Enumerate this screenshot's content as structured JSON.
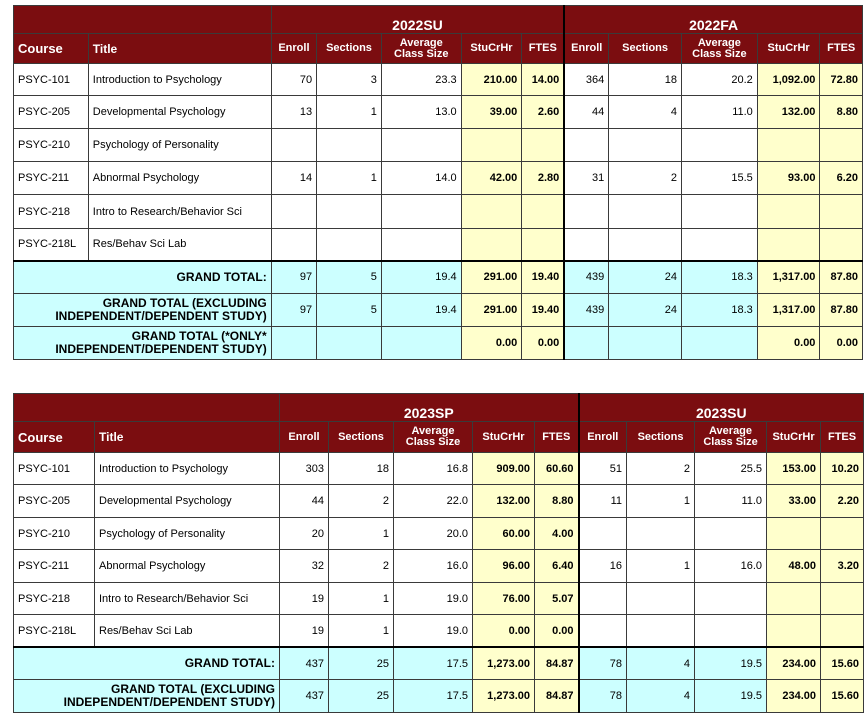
{
  "table1": {
    "term_a": "2022SU",
    "term_b": "2022FA",
    "headers": {
      "course": "Course",
      "title": "Title",
      "enroll": "Enroll",
      "sections": "Sections",
      "avg": "Average Class Size",
      "stucrhr": "StuCrHr",
      "ftes": "FTES"
    },
    "rows": [
      {
        "course": "PSYC-101",
        "title": "Introduction to Psychology",
        "a": {
          "enroll": "70",
          "sections": "3",
          "avg": "23.3",
          "stucrhr": "210.00",
          "ftes": "14.00"
        },
        "b": {
          "enroll": "364",
          "sections": "18",
          "avg": "20.2",
          "stucrhr": "1,092.00",
          "ftes": "72.80"
        }
      },
      {
        "course": "PSYC-205",
        "title": "Developmental Psychology",
        "a": {
          "enroll": "13",
          "sections": "1",
          "avg": "13.0",
          "stucrhr": "39.00",
          "ftes": "2.60"
        },
        "b": {
          "enroll": "44",
          "sections": "4",
          "avg": "11.0",
          "stucrhr": "132.00",
          "ftes": "8.80"
        }
      },
      {
        "course": "PSYC-210",
        "title": "Psychology of Personality",
        "a": {
          "enroll": "",
          "sections": "",
          "avg": "",
          "stucrhr": "",
          "ftes": ""
        },
        "b": {
          "enroll": "",
          "sections": "",
          "avg": "",
          "stucrhr": "",
          "ftes": ""
        }
      },
      {
        "course": "PSYC-211",
        "title": "Abnormal Psychology",
        "a": {
          "enroll": "14",
          "sections": "1",
          "avg": "14.0",
          "stucrhr": "42.00",
          "ftes": "2.80"
        },
        "b": {
          "enroll": "31",
          "sections": "2",
          "avg": "15.5",
          "stucrhr": "93.00",
          "ftes": "6.20"
        }
      },
      {
        "course": "PSYC-218",
        "title": "Intro to Research/Behavior Sci",
        "a": {
          "enroll": "",
          "sections": "",
          "avg": "",
          "stucrhr": "",
          "ftes": ""
        },
        "b": {
          "enroll": "",
          "sections": "",
          "avg": "",
          "stucrhr": "",
          "ftes": ""
        }
      },
      {
        "course": "PSYC-218L",
        "title": "Res/Behav Sci Lab",
        "a": {
          "enroll": "",
          "sections": "",
          "avg": "",
          "stucrhr": "",
          "ftes": ""
        },
        "b": {
          "enroll": "",
          "sections": "",
          "avg": "",
          "stucrhr": "",
          "ftes": ""
        }
      }
    ],
    "totals": [
      {
        "label": "GRAND TOTAL:",
        "a": {
          "enroll": "97",
          "sections": "5",
          "avg": "19.4",
          "stucrhr": "291.00",
          "ftes": "19.40"
        },
        "b": {
          "enroll": "439",
          "sections": "24",
          "avg": "18.3",
          "stucrhr": "1,317.00",
          "ftes": "87.80"
        }
      },
      {
        "label": "GRAND TOTAL (EXCLUDING INDEPENDENT/DEPENDENT STUDY)",
        "a": {
          "enroll": "97",
          "sections": "5",
          "avg": "19.4",
          "stucrhr": "291.00",
          "ftes": "19.40"
        },
        "b": {
          "enroll": "439",
          "sections": "24",
          "avg": "18.3",
          "stucrhr": "1,317.00",
          "ftes": "87.80"
        }
      },
      {
        "label": "GRAND TOTAL (*ONLY* INDEPENDENT/DEPENDENT STUDY)",
        "a": {
          "enroll": "",
          "sections": "",
          "avg": "",
          "stucrhr": "0.00",
          "ftes": "0.00"
        },
        "b": {
          "enroll": "",
          "sections": "",
          "avg": "",
          "stucrhr": "0.00",
          "ftes": "0.00"
        }
      }
    ]
  },
  "table2": {
    "term_a": "2023SP",
    "term_b": "2023SU",
    "headers": {
      "course": "Course",
      "title": "Title",
      "enroll": "Enroll",
      "sections": "Sections",
      "avg": "Average Class Size",
      "stucrhr": "StuCrHr",
      "ftes": "FTES"
    },
    "rows": [
      {
        "course": "PSYC-101",
        "title": "Introduction to Psychology",
        "a": {
          "enroll": "303",
          "sections": "18",
          "avg": "16.8",
          "stucrhr": "909.00",
          "ftes": "60.60"
        },
        "b": {
          "enroll": "51",
          "sections": "2",
          "avg": "25.5",
          "stucrhr": "153.00",
          "ftes": "10.20"
        }
      },
      {
        "course": "PSYC-205",
        "title": "Developmental Psychology",
        "a": {
          "enroll": "44",
          "sections": "2",
          "avg": "22.0",
          "stucrhr": "132.00",
          "ftes": "8.80"
        },
        "b": {
          "enroll": "11",
          "sections": "1",
          "avg": "11.0",
          "stucrhr": "33.00",
          "ftes": "2.20"
        }
      },
      {
        "course": "PSYC-210",
        "title": "Psychology of Personality",
        "a": {
          "enroll": "20",
          "sections": "1",
          "avg": "20.0",
          "stucrhr": "60.00",
          "ftes": "4.00"
        },
        "b": {
          "enroll": "",
          "sections": "",
          "avg": "",
          "stucrhr": "",
          "ftes": ""
        }
      },
      {
        "course": "PSYC-211",
        "title": "Abnormal Psychology",
        "a": {
          "enroll": "32",
          "sections": "2",
          "avg": "16.0",
          "stucrhr": "96.00",
          "ftes": "6.40"
        },
        "b": {
          "enroll": "16",
          "sections": "1",
          "avg": "16.0",
          "stucrhr": "48.00",
          "ftes": "3.20"
        }
      },
      {
        "course": "PSYC-218",
        "title": "Intro to Research/Behavior Sci",
        "a": {
          "enroll": "19",
          "sections": "1",
          "avg": "19.0",
          "stucrhr": "76.00",
          "ftes": "5.07"
        },
        "b": {
          "enroll": "",
          "sections": "",
          "avg": "",
          "stucrhr": "",
          "ftes": ""
        }
      },
      {
        "course": "PSYC-218L",
        "title": "Res/Behav Sci Lab",
        "a": {
          "enroll": "19",
          "sections": "1",
          "avg": "19.0",
          "stucrhr": "0.00",
          "ftes": "0.00"
        },
        "b": {
          "enroll": "",
          "sections": "",
          "avg": "",
          "stucrhr": "",
          "ftes": ""
        }
      }
    ],
    "totals": [
      {
        "label": "GRAND TOTAL:",
        "a": {
          "enroll": "437",
          "sections": "25",
          "avg": "17.5",
          "stucrhr": "1,273.00",
          "ftes": "84.87"
        },
        "b": {
          "enroll": "78",
          "sections": "4",
          "avg": "19.5",
          "stucrhr": "234.00",
          "ftes": "15.60"
        }
      },
      {
        "label": "GRAND TOTAL (EXCLUDING INDEPENDENT/DEPENDENT STUDY)",
        "a": {
          "enroll": "437",
          "sections": "25",
          "avg": "17.5",
          "stucrhr": "1,273.00",
          "ftes": "84.87"
        },
        "b": {
          "enroll": "78",
          "sections": "4",
          "avg": "19.5",
          "stucrhr": "234.00",
          "ftes": "15.60"
        }
      }
    ]
  },
  "colors": {
    "header_bg": "#7b0d10",
    "header_text": "#ffffff",
    "credit_cells": "#ffffcc",
    "total_rows": "#ccffff"
  }
}
